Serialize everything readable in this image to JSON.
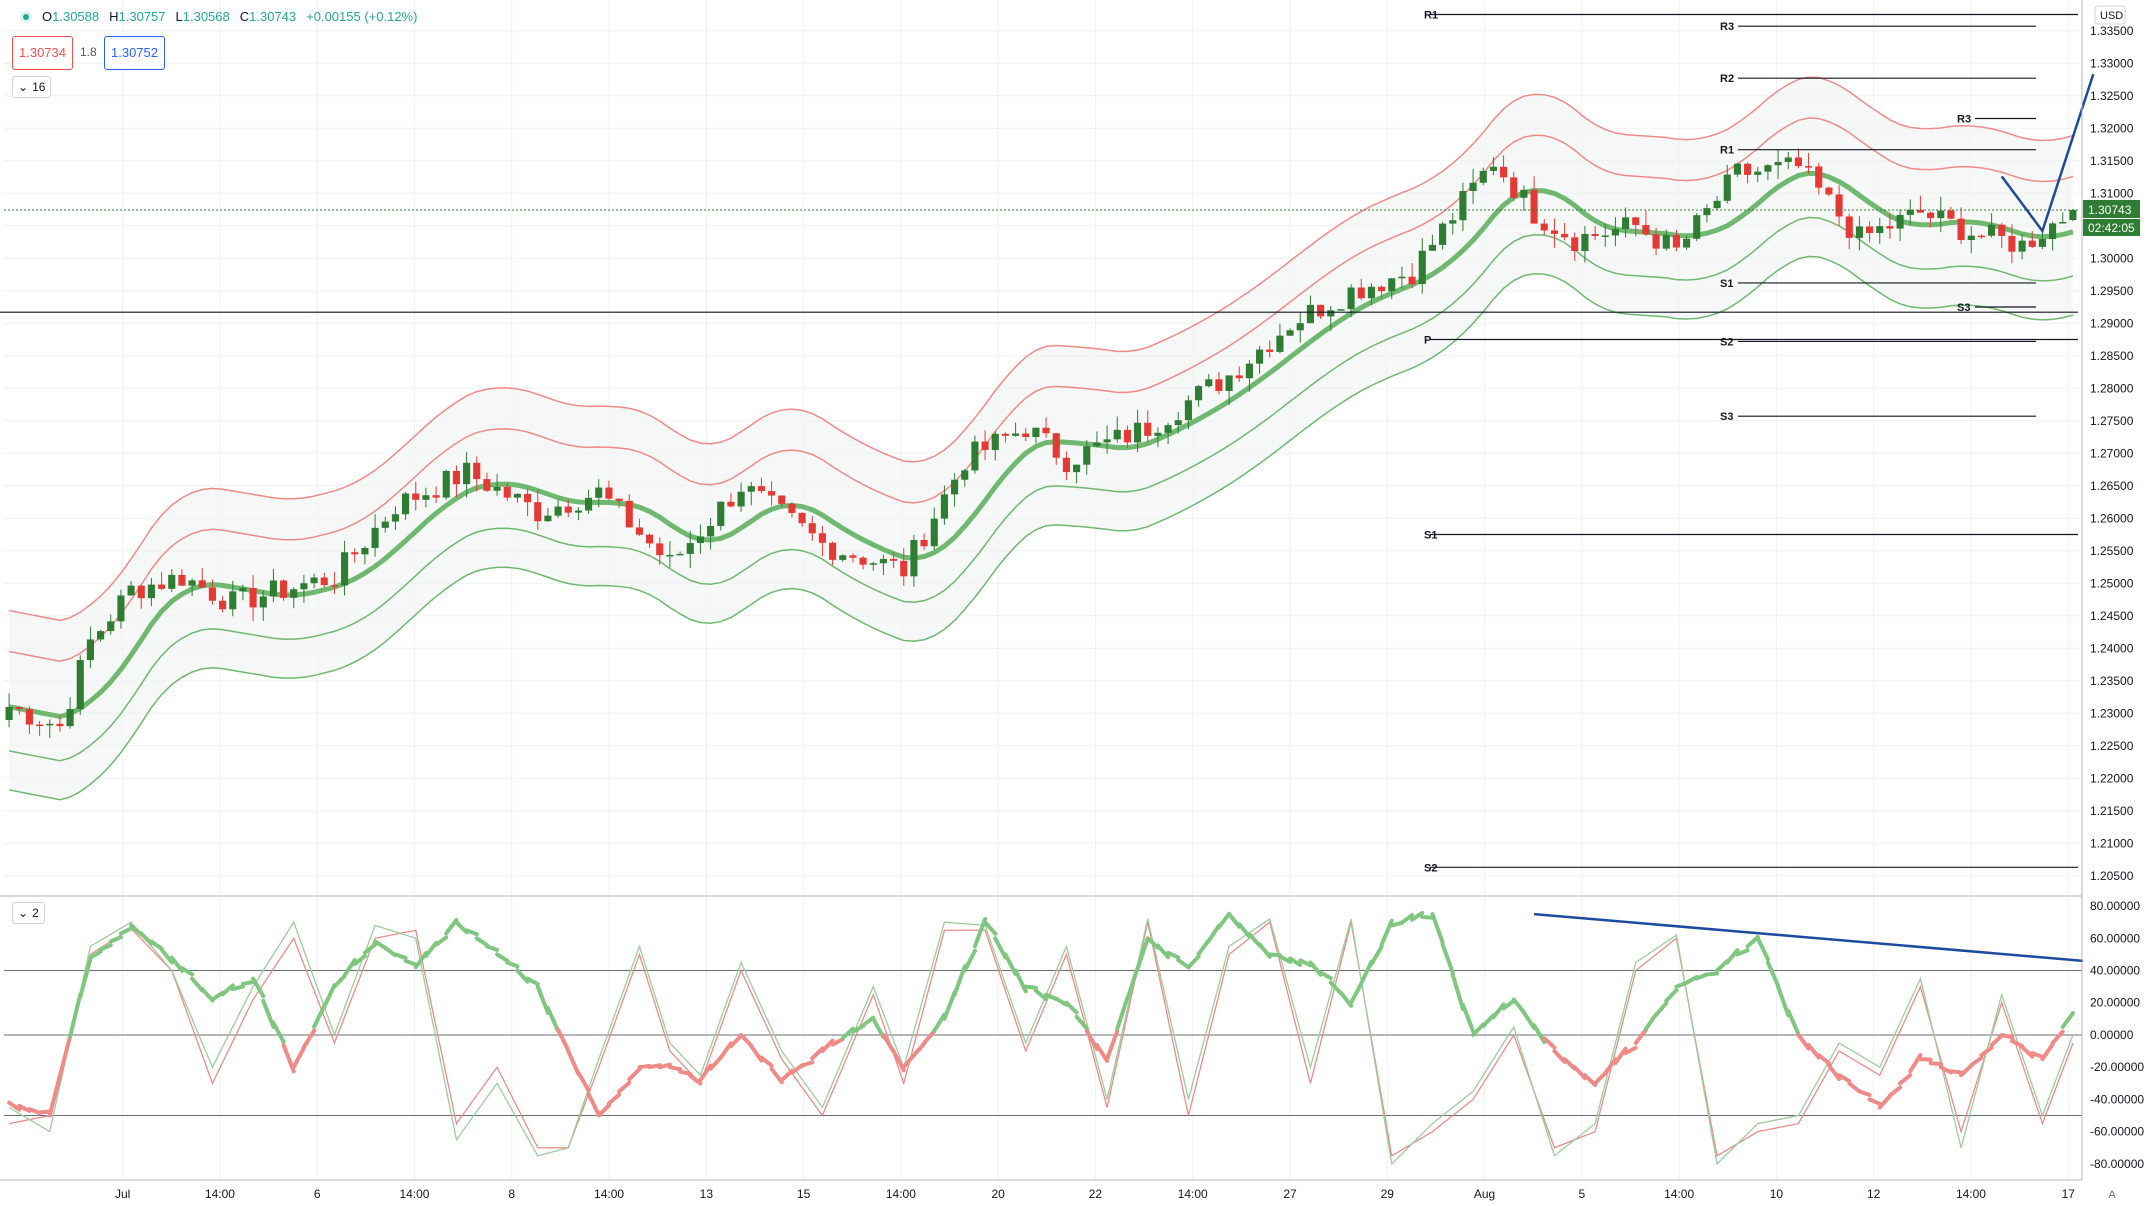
{
  "header": {
    "ohlc": [
      {
        "label": "O",
        "value": "1.30588"
      },
      {
        "label": "H",
        "value": "1.30757"
      },
      {
        "label": "L",
        "value": "1.30568"
      },
      {
        "label": "C",
        "value": "1.30743"
      }
    ],
    "change": "+0.00155 (+0.12%)",
    "bid": "1.30734",
    "spread": "1.8",
    "ask": "1.30752",
    "indicator_count_main": "16",
    "indicator_count_osc": "2"
  },
  "currency": "USD",
  "price_axis": {
    "ticks": [
      "1.33500",
      "1.33000",
      "1.32500",
      "1.32000",
      "1.31500",
      "1.31000",
      "1.30500",
      "1.30000",
      "1.29500",
      "1.29000",
      "1.28500",
      "1.28000",
      "1.27500",
      "1.27000",
      "1.26500",
      "1.26000",
      "1.25500",
      "1.25000",
      "1.24500",
      "1.24000",
      "1.23500",
      "1.23000",
      "1.22500",
      "1.22000",
      "1.21500",
      "1.21000",
      "1.20500"
    ],
    "last_price": "1.30743",
    "countdown": "02:42:05"
  },
  "osc_axis": {
    "ticks": [
      "80.00000",
      "60.00000",
      "40.00000",
      "20.00000",
      "0.00000",
      "-20.00000",
      "-40.00000",
      "-60.00000",
      "-80.00000"
    ]
  },
  "time_axis": {
    "labels": [
      "Jul",
      "14:00",
      "6",
      "14:00",
      "8",
      "14:00",
      "13",
      "15",
      "14:00",
      "20",
      "22",
      "14:00",
      "27",
      "29",
      "Aug",
      "5",
      "14:00",
      "10",
      "12",
      "14:00",
      "17"
    ]
  },
  "pivots": {
    "monthly": [
      {
        "label": "R1",
        "price": 1.3375
      },
      {
        "label": "P",
        "price": 1.2875
      },
      {
        "label": "S1",
        "price": 1.2575
      },
      {
        "label": "S2",
        "price": 1.2063
      }
    ],
    "weekly": [
      {
        "label": "R3",
        "price": 1.3357
      },
      {
        "label": "R2",
        "price": 1.3277
      },
      {
        "label": "R1",
        "price": 1.3167
      },
      {
        "label": "S1",
        "price": 1.2962
      },
      {
        "label": "S2",
        "price": 1.2872
      },
      {
        "label": "S3",
        "price": 1.2757
      }
    ],
    "daily": [
      {
        "label": "R3",
        "price": 1.3215
      },
      {
        "label": "S3",
        "price": 1.2925
      }
    ]
  },
  "corner_label": "A",
  "chart_data": [
    {
      "type": "candlestick",
      "symbol_quote": "USD",
      "ylim": [
        1.2025,
        1.3385
      ],
      "bar_count": 204,
      "last": {
        "open": 1.30588,
        "high": 1.30757,
        "low": 1.30568,
        "close": 1.30743
      },
      "anchors": [
        {
          "bar": 0,
          "price": 1.231
        },
        {
          "bar": 5,
          "price": 1.228
        },
        {
          "bar": 8,
          "price": 1.241
        },
        {
          "bar": 12,
          "price": 1.249
        },
        {
          "bar": 17,
          "price": 1.251
        },
        {
          "bar": 22,
          "price": 1.247
        },
        {
          "bar": 32,
          "price": 1.251
        },
        {
          "bar": 38,
          "price": 1.262
        },
        {
          "bar": 45,
          "price": 1.267
        },
        {
          "bar": 52,
          "price": 1.261
        },
        {
          "bar": 58,
          "price": 1.264
        },
        {
          "bar": 65,
          "price": 1.253
        },
        {
          "bar": 72,
          "price": 1.265
        },
        {
          "bar": 80,
          "price": 1.256
        },
        {
          "bar": 88,
          "price": 1.252
        },
        {
          "bar": 94,
          "price": 1.269
        },
        {
          "bar": 100,
          "price": 1.274
        },
        {
          "bar": 104,
          "price": 1.269
        },
        {
          "bar": 112,
          "price": 1.274
        },
        {
          "bar": 120,
          "price": 1.282
        },
        {
          "bar": 126,
          "price": 1.29
        },
        {
          "bar": 132,
          "price": 1.295
        },
        {
          "bar": 138,
          "price": 1.298
        },
        {
          "bar": 146,
          "price": 1.315
        },
        {
          "bar": 150,
          "price": 1.307
        },
        {
          "bar": 154,
          "price": 1.303
        },
        {
          "bar": 160,
          "price": 1.305
        },
        {
          "bar": 164,
          "price": 1.301
        },
        {
          "bar": 170,
          "price": 1.313
        },
        {
          "bar": 176,
          "price": 1.314
        },
        {
          "bar": 182,
          "price": 1.303
        },
        {
          "bar": 188,
          "price": 1.307
        },
        {
          "bar": 193,
          "price": 1.304
        },
        {
          "bar": 198,
          "price": 1.302
        },
        {
          "bar": 203,
          "price": 1.3074
        }
      ],
      "bands": [
        {
          "name": "MA",
          "color": "#6fb86f",
          "width": 5,
          "offset": 0
        },
        {
          "name": "Upper 1",
          "color": "#ef8a86",
          "width": 1.5,
          "offset": 0.0085
        },
        {
          "name": "Upper 2",
          "color": "#ef8a86",
          "width": 1.5,
          "offset": 0.0148
        },
        {
          "name": "Lower 1",
          "color": "#6fb86f",
          "width": 1.5,
          "offset": -0.0068
        },
        {
          "name": "Lower 2",
          "color": "#6fb86f",
          "width": 1.5,
          "offset": -0.0128
        }
      ],
      "drawings": [
        {
          "color": "#1e4a9c",
          "points": [
            {
              "bar": 196,
              "price": 1.3126
            },
            {
              "bar": 200,
              "price": 1.3042
            },
            {
              "bar": 205,
              "price": 1.3283
            }
          ]
        }
      ],
      "colors": {
        "up": "#2e7d32",
        "down": "#e53935"
      }
    },
    {
      "type": "line",
      "panel": "oscillator",
      "ylim": [
        -90,
        85
      ],
      "levels": [
        40,
        0,
        -50
      ],
      "series": [
        {
          "name": "",
          "color": "#6fbe6f",
          "anchors": [
            [
              0,
              -42
            ],
            [
              4,
              -50
            ],
            [
              8,
              48
            ],
            [
              12,
              68
            ],
            [
              16,
              48
            ],
            [
              20,
              22
            ],
            [
              24,
              35
            ],
            [
              28,
              -20
            ],
            [
              32,
              30
            ],
            [
              36,
              58
            ],
            [
              40,
              42
            ],
            [
              44,
              70
            ],
            [
              48,
              50
            ],
            [
              52,
              30
            ],
            [
              55,
              -10
            ],
            [
              58,
              -50
            ],
            [
              62,
              -20
            ],
            [
              65,
              -20
            ],
            [
              68,
              -28
            ],
            [
              72,
              0
            ],
            [
              76,
              -28
            ],
            [
              80,
              -10
            ],
            [
              85,
              10
            ],
            [
              88,
              -20
            ],
            [
              92,
              10
            ],
            [
              96,
              70
            ],
            [
              100,
              30
            ],
            [
              104,
              20
            ],
            [
              108,
              -15
            ],
            [
              112,
              60
            ],
            [
              116,
              42
            ],
            [
              120,
              75
            ],
            [
              124,
              50
            ],
            [
              128,
              45
            ],
            [
              132,
              20
            ],
            [
              136,
              68
            ],
            [
              140,
              75
            ],
            [
              144,
              0
            ],
            [
              148,
              22
            ],
            [
              152,
              -10
            ],
            [
              156,
              -30
            ],
            [
              160,
              -5
            ],
            [
              164,
              30
            ],
            [
              168,
              40
            ],
            [
              172,
              60
            ],
            [
              176,
              0
            ],
            [
              180,
              -25
            ],
            [
              184,
              -45
            ],
            [
              188,
              -15
            ],
            [
              192,
              -25
            ],
            [
              196,
              0
            ],
            [
              200,
              -15
            ],
            [
              203,
              15
            ]
          ]
        },
        {
          "name": "",
          "color": "#e88d8a",
          "anchors": [
            [
              0,
              -55
            ],
            [
              4,
              -50
            ],
            [
              8,
              50
            ],
            [
              12,
              66
            ],
            [
              16,
              40
            ],
            [
              20,
              -30
            ],
            [
              24,
              22
            ],
            [
              28,
              60
            ],
            [
              32,
              -5
            ],
            [
              36,
              60
            ],
            [
              40,
              65
            ],
            [
              44,
              -55
            ],
            [
              48,
              -20
            ],
            [
              52,
              -70
            ],
            [
              55,
              -70
            ],
            [
              58,
              -20
            ],
            [
              62,
              50
            ],
            [
              65,
              -10
            ],
            [
              68,
              -30
            ],
            [
              72,
              40
            ],
            [
              76,
              -15
            ],
            [
              80,
              -50
            ],
            [
              85,
              25
            ],
            [
              88,
              -30
            ],
            [
              92,
              65
            ],
            [
              96,
              65
            ],
            [
              100,
              -10
            ],
            [
              104,
              50
            ],
            [
              108,
              -45
            ],
            [
              112,
              70
            ],
            [
              116,
              -50
            ],
            [
              120,
              50
            ],
            [
              124,
              70
            ],
            [
              128,
              -30
            ],
            [
              132,
              70
            ],
            [
              136,
              -75
            ],
            [
              140,
              -60
            ],
            [
              144,
              -40
            ],
            [
              148,
              0
            ],
            [
              152,
              -70
            ],
            [
              156,
              -60
            ],
            [
              160,
              40
            ],
            [
              164,
              60
            ],
            [
              168,
              -75
            ],
            [
              172,
              -60
            ],
            [
              176,
              -55
            ],
            [
              180,
              -10
            ],
            [
              184,
              -25
            ],
            [
              188,
              30
            ],
            [
              192,
              -60
            ],
            [
              196,
              20
            ],
            [
              200,
              -55
            ],
            [
              203,
              -5
            ]
          ]
        },
        {
          "name": "",
          "color": "#9ccc9c",
          "anchors": [
            [
              0,
              -45
            ],
            [
              4,
              -60
            ],
            [
              8,
              55
            ],
            [
              12,
              70
            ],
            [
              16,
              40
            ],
            [
              20,
              -20
            ],
            [
              24,
              30
            ],
            [
              28,
              70
            ],
            [
              32,
              0
            ],
            [
              36,
              68
            ],
            [
              40,
              60
            ],
            [
              44,
              -65
            ],
            [
              48,
              -30
            ],
            [
              52,
              -75
            ],
            [
              55,
              -70
            ],
            [
              58,
              -15
            ],
            [
              62,
              55
            ],
            [
              65,
              -5
            ],
            [
              68,
              -25
            ],
            [
              72,
              45
            ],
            [
              76,
              -10
            ],
            [
              80,
              -45
            ],
            [
              85,
              30
            ],
            [
              88,
              -20
            ],
            [
              92,
              70
            ],
            [
              96,
              68
            ],
            [
              100,
              -5
            ],
            [
              104,
              55
            ],
            [
              108,
              -40
            ],
            [
              112,
              72
            ],
            [
              116,
              -40
            ],
            [
              120,
              55
            ],
            [
              124,
              72
            ],
            [
              128,
              -20
            ],
            [
              132,
              72
            ],
            [
              136,
              -80
            ],
            [
              140,
              -55
            ],
            [
              144,
              -35
            ],
            [
              148,
              5
            ],
            [
              152,
              -75
            ],
            [
              156,
              -55
            ],
            [
              160,
              45
            ],
            [
              164,
              62
            ],
            [
              168,
              -80
            ],
            [
              172,
              -55
            ],
            [
              176,
              -50
            ],
            [
              180,
              -5
            ],
            [
              184,
              -20
            ],
            [
              188,
              35
            ],
            [
              192,
              -70
            ],
            [
              196,
              25
            ],
            [
              200,
              -50
            ],
            [
              203,
              0
            ]
          ]
        }
      ],
      "main_line_colors": {
        "up": "#7fc77f",
        "down": "#ef8a86"
      },
      "drawings": [
        {
          "color": "#1e4a9c",
          "points": [
            {
              "bar": 150,
              "value": 75
            },
            {
              "bar": 204,
              "value": 46
            }
          ]
        }
      ]
    }
  ]
}
